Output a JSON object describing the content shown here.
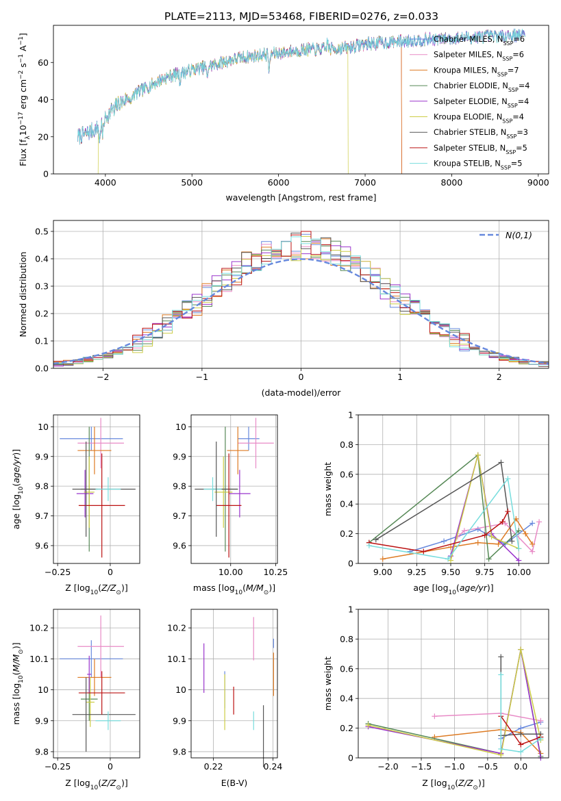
{
  "title": "PLATE=2113, MJD=53468, FIBERID=0276, z=0.033",
  "colors": {
    "Chabrier MILES": "#6688dd",
    "Salpeter MILES": "#e88ac6",
    "Kroupa MILES": "#dd7a22",
    "Chabrier ELODIE": "#558855",
    "Salpeter ELODIE": "#9933cc",
    "Kroupa ELODIE": "#cccc44",
    "Chabrier STELIB": "#555555",
    "Salpeter STELIB": "#bb1111",
    "Kroupa STELIB": "#77dddd"
  },
  "chart_data": [
    {
      "id": "spectrum",
      "type": "line",
      "xlabel": "wavelength [Angstrom, rest frame]",
      "ylabel": "Flux [f_λ 10^-17 erg cm^-2 s^-1 A^-1]",
      "xlim": [
        3400,
        9120
      ],
      "ylim": [
        0,
        80
      ],
      "xticks": [
        4000,
        5000,
        6000,
        7000,
        8000,
        9000
      ],
      "yticks": [
        0,
        20,
        40,
        60
      ],
      "legend": "upper right",
      "legend_entries": [
        {
          "model": "Chabrier MILES",
          "n": 6
        },
        {
          "model": "Salpeter MILES",
          "n": 6
        },
        {
          "model": "Kroupa MILES",
          "n": 7
        },
        {
          "model": "Chabrier ELODIE",
          "n": 4
        },
        {
          "model": "Salpeter ELODIE",
          "n": 4
        },
        {
          "model": "Kroupa ELODIE",
          "n": 4
        },
        {
          "model": "Chabrier STELIB",
          "n": 3
        },
        {
          "model": "Salpeter STELIB",
          "n": 5
        },
        {
          "model": "Kroupa STELIB",
          "n": 5
        }
      ],
      "spectrum_range": [
        3680,
        8850
      ],
      "continuum": [
        [
          3680,
          20
        ],
        [
          3900,
          24
        ],
        [
          4000,
          30
        ],
        [
          4100,
          36
        ],
        [
          4300,
          42
        ],
        [
          4500,
          47
        ],
        [
          4700,
          52
        ],
        [
          5000,
          56
        ],
        [
          5200,
          58
        ],
        [
          5500,
          62
        ],
        [
          5800,
          64
        ],
        [
          6000,
          65
        ],
        [
          6300,
          67
        ],
        [
          6500,
          67
        ],
        [
          6800,
          68
        ],
        [
          7000,
          70
        ],
        [
          7300,
          71
        ],
        [
          7600,
          72
        ],
        [
          8000,
          73
        ],
        [
          8400,
          74
        ],
        [
          8850,
          75
        ]
      ],
      "absorption_lines": [
        [
          3934,
          -9
        ],
        [
          3969,
          -8
        ],
        [
          4102,
          -4
        ],
        [
          4300,
          -6
        ],
        [
          4861,
          -5
        ],
        [
          5175,
          -7
        ],
        [
          5893,
          -10
        ],
        [
          6563,
          5
        ]
      ],
      "range_ends": {
        "Kroupa ELODIE": [
          3920,
          6800
        ],
        "Salpeter STELIB": [
          3680,
          7420
        ],
        "Kroupa MILES": [
          3680,
          7420
        ]
      }
    },
    {
      "id": "residuals",
      "type": "histogram",
      "xlabel": "(data-model)/error",
      "ylabel": "Normed distribution",
      "xlim": [
        -2.5,
        2.5
      ],
      "ylim": [
        0,
        0.54
      ],
      "xticks": [
        -2,
        -1,
        0,
        1,
        2
      ],
      "yticks": [
        0.0,
        0.1,
        0.2,
        0.3,
        0.4,
        0.5
      ],
      "legend": "upper right",
      "reference_label": "N(0,1)",
      "bin_width": 0.1
    },
    {
      "id": "age-vs-Z",
      "type": "errorbar",
      "xlabel": "Z [log10(Z/Z⊙)]",
      "ylabel": "age [log10(age/yr)]",
      "xlim": [
        -0.27,
        0.14
      ],
      "ylim": [
        9.54,
        10.04
      ],
      "xticks": [
        -0.25,
        0.0
      ],
      "yticks": [
        9.6,
        9.7,
        9.8,
        9.9,
        10.0
      ],
      "points": [
        {
          "model": "Chabrier MILES",
          "x": -0.09,
          "y": 9.96,
          "xerr": 0.15,
          "yerr": 0.04
        },
        {
          "model": "Salpeter MILES",
          "x": -0.045,
          "y": 9.945,
          "xerr": 0.11,
          "yerr": 0.085
        },
        {
          "model": "Kroupa MILES",
          "x": -0.075,
          "y": 9.92,
          "xerr": 0.08,
          "yerr": 0.08
        },
        {
          "model": "Chabrier ELODIE",
          "x": -0.1,
          "y": 9.79,
          "xerr": 0.04,
          "yerr": 0.21
        },
        {
          "model": "Salpeter ELODIE",
          "x": -0.12,
          "y": 9.775,
          "xerr": 0.04,
          "yerr": 0.08
        },
        {
          "model": "Kroupa ELODIE",
          "x": -0.1,
          "y": 9.78,
          "xerr": 0.025,
          "yerr": 0.12
        },
        {
          "model": "Chabrier STELIB",
          "x": -0.03,
          "y": 9.79,
          "xerr": 0.15,
          "yerr": 0.0
        },
        {
          "model": "Salpeter STELIB",
          "x": -0.04,
          "y": 9.735,
          "xerr": 0.11,
          "yerr": 0.175
        },
        {
          "model": "Kroupa STELIB",
          "x": -0.01,
          "y": 9.79,
          "xerr": 0.06,
          "yerr": 0.04
        },
        {
          "model": "Chabrier STELIB",
          "x": -0.115,
          "y": 9.79,
          "xerr": 0.0,
          "yerr": 0.16
        }
      ]
    },
    {
      "id": "age-vs-mass",
      "type": "errorbar",
      "xlabel": "mass [log10(M/M⊙)]",
      "xlim": [
        9.78,
        10.26
      ],
      "ylim": [
        9.54,
        10.04
      ],
      "xticks": [
        10.0,
        10.25
      ],
      "xtick_labels": [
        "10.00",
        "10.25"
      ],
      "yticks": [
        9.6,
        9.7,
        9.8,
        9.9,
        10.0
      ],
      "points": [
        {
          "model": "Chabrier MILES",
          "x": 10.1,
          "y": 9.96,
          "xerr": 0.06,
          "yerr": 0.04
        },
        {
          "model": "Salpeter MILES",
          "x": 10.14,
          "y": 9.945,
          "xerr": 0.1,
          "yerr": 0.085
        },
        {
          "model": "Kroupa MILES",
          "x": 10.04,
          "y": 9.92,
          "xerr": 0.06,
          "yerr": 0.08
        },
        {
          "model": "Chabrier ELODIE",
          "x": 9.97,
          "y": 9.79,
          "xerr": 0.07,
          "yerr": 0.21
        },
        {
          "model": "Salpeter ELODIE",
          "x": 10.05,
          "y": 9.775,
          "xerr": 0.06,
          "yerr": 0.08
        },
        {
          "model": "Kroupa ELODIE",
          "x": 9.96,
          "y": 9.78,
          "xerr": 0.05,
          "yerr": 0.12
        },
        {
          "model": "Chabrier STELIB",
          "x": 9.92,
          "y": 9.79,
          "xerr": 0.12,
          "yerr": 0.0
        },
        {
          "model": "Salpeter STELIB",
          "x": 9.99,
          "y": 9.735,
          "xerr": 0.07,
          "yerr": 0.175
        },
        {
          "model": "Kroupa STELIB",
          "x": 9.9,
          "y": 9.79,
          "xerr": 0.05,
          "yerr": 0.04
        },
        {
          "model": "Chabrier STELIB",
          "x": 9.92,
          "y": 9.79,
          "xerr": 0.0,
          "yerr": 0.16
        }
      ]
    },
    {
      "id": "weight-vs-age",
      "type": "line",
      "xlabel": "age [log10(age/yr)]",
      "ylabel": "mass weight",
      "xlim": [
        8.82,
        10.22
      ],
      "ylim": [
        0,
        1
      ],
      "xticks": [
        9.0,
        9.25,
        9.5,
        9.75,
        10.0
      ],
      "xtick_labels": [
        "9.00",
        "9.25",
        "9.50",
        "9.75",
        "10.00"
      ],
      "yticks": [
        0.0,
        0.2,
        0.4,
        0.6,
        0.8,
        1.0
      ],
      "series": [
        {
          "model": "Chabrier MILES",
          "points": [
            [
              9.2,
              0.08
            ],
            [
              9.45,
              0.15
            ],
            [
              9.7,
              0.23
            ],
            [
              9.9,
              0.13
            ],
            [
              10.1,
              0.27
            ]
          ]
        },
        {
          "model": "Salpeter MILES",
          "points": [
            [
              9.55,
              0.18
            ],
            [
              9.6,
              0.22
            ],
            [
              9.9,
              0.27
            ],
            [
              10.1,
              0.08
            ],
            [
              10.15,
              0.28
            ]
          ]
        },
        {
          "model": "Kroupa MILES",
          "points": [
            [
              9.0,
              0.03
            ],
            [
              9.5,
              0.11
            ],
            [
              9.7,
              0.14
            ],
            [
              9.85,
              0.13
            ],
            [
              9.98,
              0.3
            ],
            [
              10.05,
              0.2
            ],
            [
              10.1,
              0.13
            ]
          ]
        },
        {
          "model": "Chabrier ELODIE",
          "points": [
            [
              8.9,
              0.14
            ],
            [
              9.7,
              0.73
            ],
            [
              9.78,
              0.03
            ],
            [
              10.0,
              0.22
            ]
          ]
        },
        {
          "model": "Salpeter ELODIE",
          "points": [
            [
              9.5,
              0.05
            ],
            [
              9.7,
              0.73
            ],
            [
              9.8,
              0.2
            ],
            [
              10.0,
              0.02
            ]
          ]
        },
        {
          "model": "Kroupa ELODIE",
          "points": [
            [
              9.5,
              0.02
            ],
            [
              9.7,
              0.73
            ],
            [
              9.8,
              0.18
            ],
            [
              10.0,
              0.1
            ]
          ]
        },
        {
          "model": "Chabrier STELIB",
          "points": [
            [
              8.95,
              0.16
            ],
            [
              9.87,
              0.68
            ],
            [
              9.95,
              0.15
            ]
          ]
        },
        {
          "model": "Salpeter STELIB",
          "points": [
            [
              8.9,
              0.14
            ],
            [
              9.3,
              0.08
            ],
            [
              9.75,
              0.19
            ],
            [
              9.88,
              0.28
            ],
            [
              9.92,
              0.35
            ]
          ]
        },
        {
          "model": "Kroupa STELIB",
          "points": [
            [
              8.9,
              0.12
            ],
            [
              9.48,
              0.03
            ],
            [
              9.92,
              0.57
            ],
            [
              10.0,
              0.1
            ]
          ]
        }
      ]
    },
    {
      "id": "mass-vs-Z",
      "type": "errorbar",
      "xlabel": "Z [log10(Z/Z⊙)]",
      "ylabel": "mass [log10(M/M⊙)]",
      "xlim": [
        -0.27,
        0.14
      ],
      "ylim": [
        9.78,
        10.26
      ],
      "xticks": [
        -0.25,
        0.0
      ],
      "yticks": [
        9.8,
        9.9,
        10.0,
        10.1,
        10.2
      ],
      "points": [
        {
          "model": "Chabrier MILES",
          "x": -0.09,
          "y": 10.1,
          "xerr": 0.15,
          "yerr": 0.06
        },
        {
          "model": "Salpeter MILES",
          "x": -0.045,
          "y": 10.14,
          "xerr": 0.11,
          "yerr": 0.1
        },
        {
          "model": "Kroupa MILES",
          "x": -0.075,
          "y": 10.04,
          "xerr": 0.08,
          "yerr": 0.06
        },
        {
          "model": "Chabrier ELODIE",
          "x": -0.1,
          "y": 9.97,
          "xerr": 0.04,
          "yerr": 0.07
        },
        {
          "model": "Salpeter ELODIE",
          "x": -0.1,
          "y": 10.05,
          "xerr": 0.01,
          "yerr": 0.06
        },
        {
          "model": "Kroupa ELODIE",
          "x": -0.095,
          "y": 9.96,
          "xerr": 0.02,
          "yerr": 0.08
        },
        {
          "model": "Chabrier STELIB",
          "x": -0.03,
          "y": 9.92,
          "xerr": 0.15,
          "yerr": 0.0
        },
        {
          "model": "Salpeter STELIB",
          "x": -0.04,
          "y": 9.99,
          "xerr": 0.11,
          "yerr": 0.07
        },
        {
          "model": "Kroupa STELIB",
          "x": -0.01,
          "y": 9.9,
          "xerr": 0.06,
          "yerr": 0.03
        },
        {
          "model": "Chabrier STELIB",
          "x": -0.115,
          "y": 9.92,
          "xerr": 0.0,
          "yerr": 0.12
        }
      ]
    },
    {
      "id": "mass-vs-ebv",
      "type": "errorbar",
      "xlabel": "E(B-V)",
      "xlim": [
        0.2125,
        0.2415
      ],
      "ylim": [
        9.78,
        10.26
      ],
      "xticks": [
        0.22,
        0.24
      ],
      "xtick_labels": [
        "0.22",
        "0.24"
      ],
      "yticks": [
        9.8,
        9.9,
        10.0,
        10.1,
        10.2
      ],
      "points": [
        {
          "model": "Salpeter ELODIE",
          "x": 0.2168,
          "y": 10.07,
          "yerr": 0.08
        },
        {
          "model": "Chabrier MILES",
          "x": 0.2238,
          "y": 10.0,
          "yerr": 0.06
        },
        {
          "model": "Kroupa ELODIE",
          "x": 0.2238,
          "y": 9.96,
          "yerr": 0.09
        },
        {
          "model": "Salpeter STELIB",
          "x": 0.2268,
          "y": 9.965,
          "yerr": 0.045
        },
        {
          "model": "Salpeter MILES",
          "x": 0.2335,
          "y": 10.165,
          "yerr": 0.07
        },
        {
          "model": "Kroupa STELIB",
          "x": 0.2335,
          "y": 9.9,
          "yerr": 0.03
        },
        {
          "model": "Chabrier STELIB",
          "x": 0.2368,
          "y": 9.85,
          "yerr": 0.1
        },
        {
          "model": "Kroupa MILES",
          "x": 0.2402,
          "y": 10.05,
          "yerr": 0.07
        },
        {
          "model": "Chabrier MILES",
          "x": 0.2402,
          "y": 10.15,
          "yerr": 0.015
        }
      ]
    },
    {
      "id": "weight-vs-Z",
      "type": "line",
      "xlabel": "Z [log10(Z/Z⊙)]",
      "ylabel": "mass weight",
      "xlim": [
        -2.45,
        0.42
      ],
      "ylim": [
        0,
        1
      ],
      "xticks": [
        -2.0,
        -1.5,
        -1.0,
        -0.5,
        0.0
      ],
      "xtick_labels": [
        "−2.0",
        "−1.5",
        "−1.0",
        "−0.5",
        "0.0"
      ],
      "yticks": [
        0.0,
        0.2,
        0.4,
        0.6,
        0.8,
        1.0
      ],
      "series": [
        {
          "model": "Chabrier MILES",
          "points": [
            [
              -0.3,
              0.13
            ],
            [
              0.0,
              0.2
            ],
            [
              0.3,
              0.24
            ]
          ]
        },
        {
          "model": "Salpeter MILES",
          "points": [
            [
              -1.3,
              0.28
            ],
            [
              -0.3,
              0.3
            ],
            [
              0.3,
              0.25
            ]
          ]
        },
        {
          "model": "Kroupa MILES",
          "points": [
            [
              -1.3,
              0.14
            ],
            [
              -0.3,
              0.19
            ],
            [
              0.0,
              0.17
            ],
            [
              0.3,
              0.03
            ]
          ]
        },
        {
          "model": "Chabrier ELODIE",
          "points": [
            [
              -2.3,
              0.23
            ],
            [
              -0.3,
              0.03
            ],
            [
              0.0,
              0.73
            ],
            [
              0.3,
              0.01
            ]
          ]
        },
        {
          "model": "Salpeter ELODIE",
          "points": [
            [
              -2.3,
              0.21
            ],
            [
              -0.3,
              0.03
            ],
            [
              0.0,
              0.73
            ],
            [
              0.3,
              0.0
            ]
          ]
        },
        {
          "model": "Kroupa ELODIE",
          "points": [
            [
              -2.3,
              0.22
            ],
            [
              -0.3,
              0.02
            ],
            [
              0.0,
              0.73
            ],
            [
              0.3,
              0.12
            ]
          ]
        },
        {
          "model": "Chabrier STELIB",
          "points": [
            [
              -0.3,
              0.68
            ],
            [
              -0.3,
              0.15
            ],
            [
              0.0,
              0.16
            ],
            [
              0.3,
              0.16
            ]
          ]
        },
        {
          "model": "Salpeter STELIB",
          "points": [
            [
              -0.3,
              0.28
            ],
            [
              0.0,
              0.09
            ],
            [
              0.3,
              0.14
            ]
          ]
        },
        {
          "model": "Kroupa STELIB",
          "points": [
            [
              -0.3,
              0.56
            ],
            [
              -0.3,
              0.06
            ],
            [
              0.0,
              0.04
            ],
            [
              0.3,
              0.13
            ]
          ]
        }
      ]
    }
  ]
}
